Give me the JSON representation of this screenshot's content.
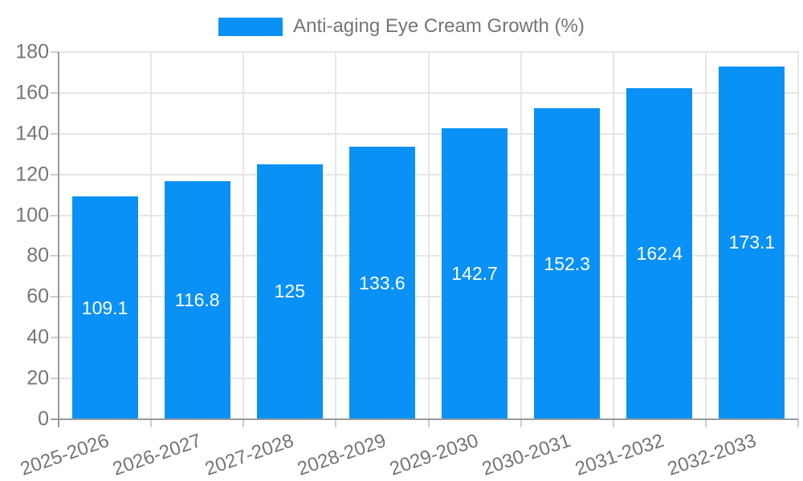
{
  "chart_data": {
    "type": "bar",
    "title": "Anti-aging Eye Cream Growth (%)",
    "legend": {
      "position": "top-center",
      "entries": [
        "Anti-aging Eye Cream Growth (%)"
      ]
    },
    "categories": [
      "2025-2026",
      "2026-2027",
      "2027-2028",
      "2028-2029",
      "2029-2030",
      "2030-2031",
      "2031-2032",
      "2032-2033"
    ],
    "values": [
      109.1,
      116.8,
      125,
      133.6,
      142.7,
      152.3,
      162.4,
      173.1
    ],
    "value_labels": [
      "109.1",
      "116.8",
      "125",
      "133.6",
      "142.7",
      "152.3",
      "162.4",
      "173.1"
    ],
    "xlabel": "",
    "ylabel": "",
    "ylim": [
      0,
      180
    ],
    "yticks": [
      0,
      20,
      40,
      60,
      80,
      100,
      120,
      140,
      160,
      180
    ],
    "grid": true,
    "x_label_rotation_deg": -19,
    "colors": {
      "bar": "#0a91f5",
      "text": "#757575",
      "grid": "#e6e6e6",
      "tick": "#cccccc",
      "axis": "#999999",
      "bar_label": "#ffffff",
      "background": "#ffffff"
    }
  }
}
